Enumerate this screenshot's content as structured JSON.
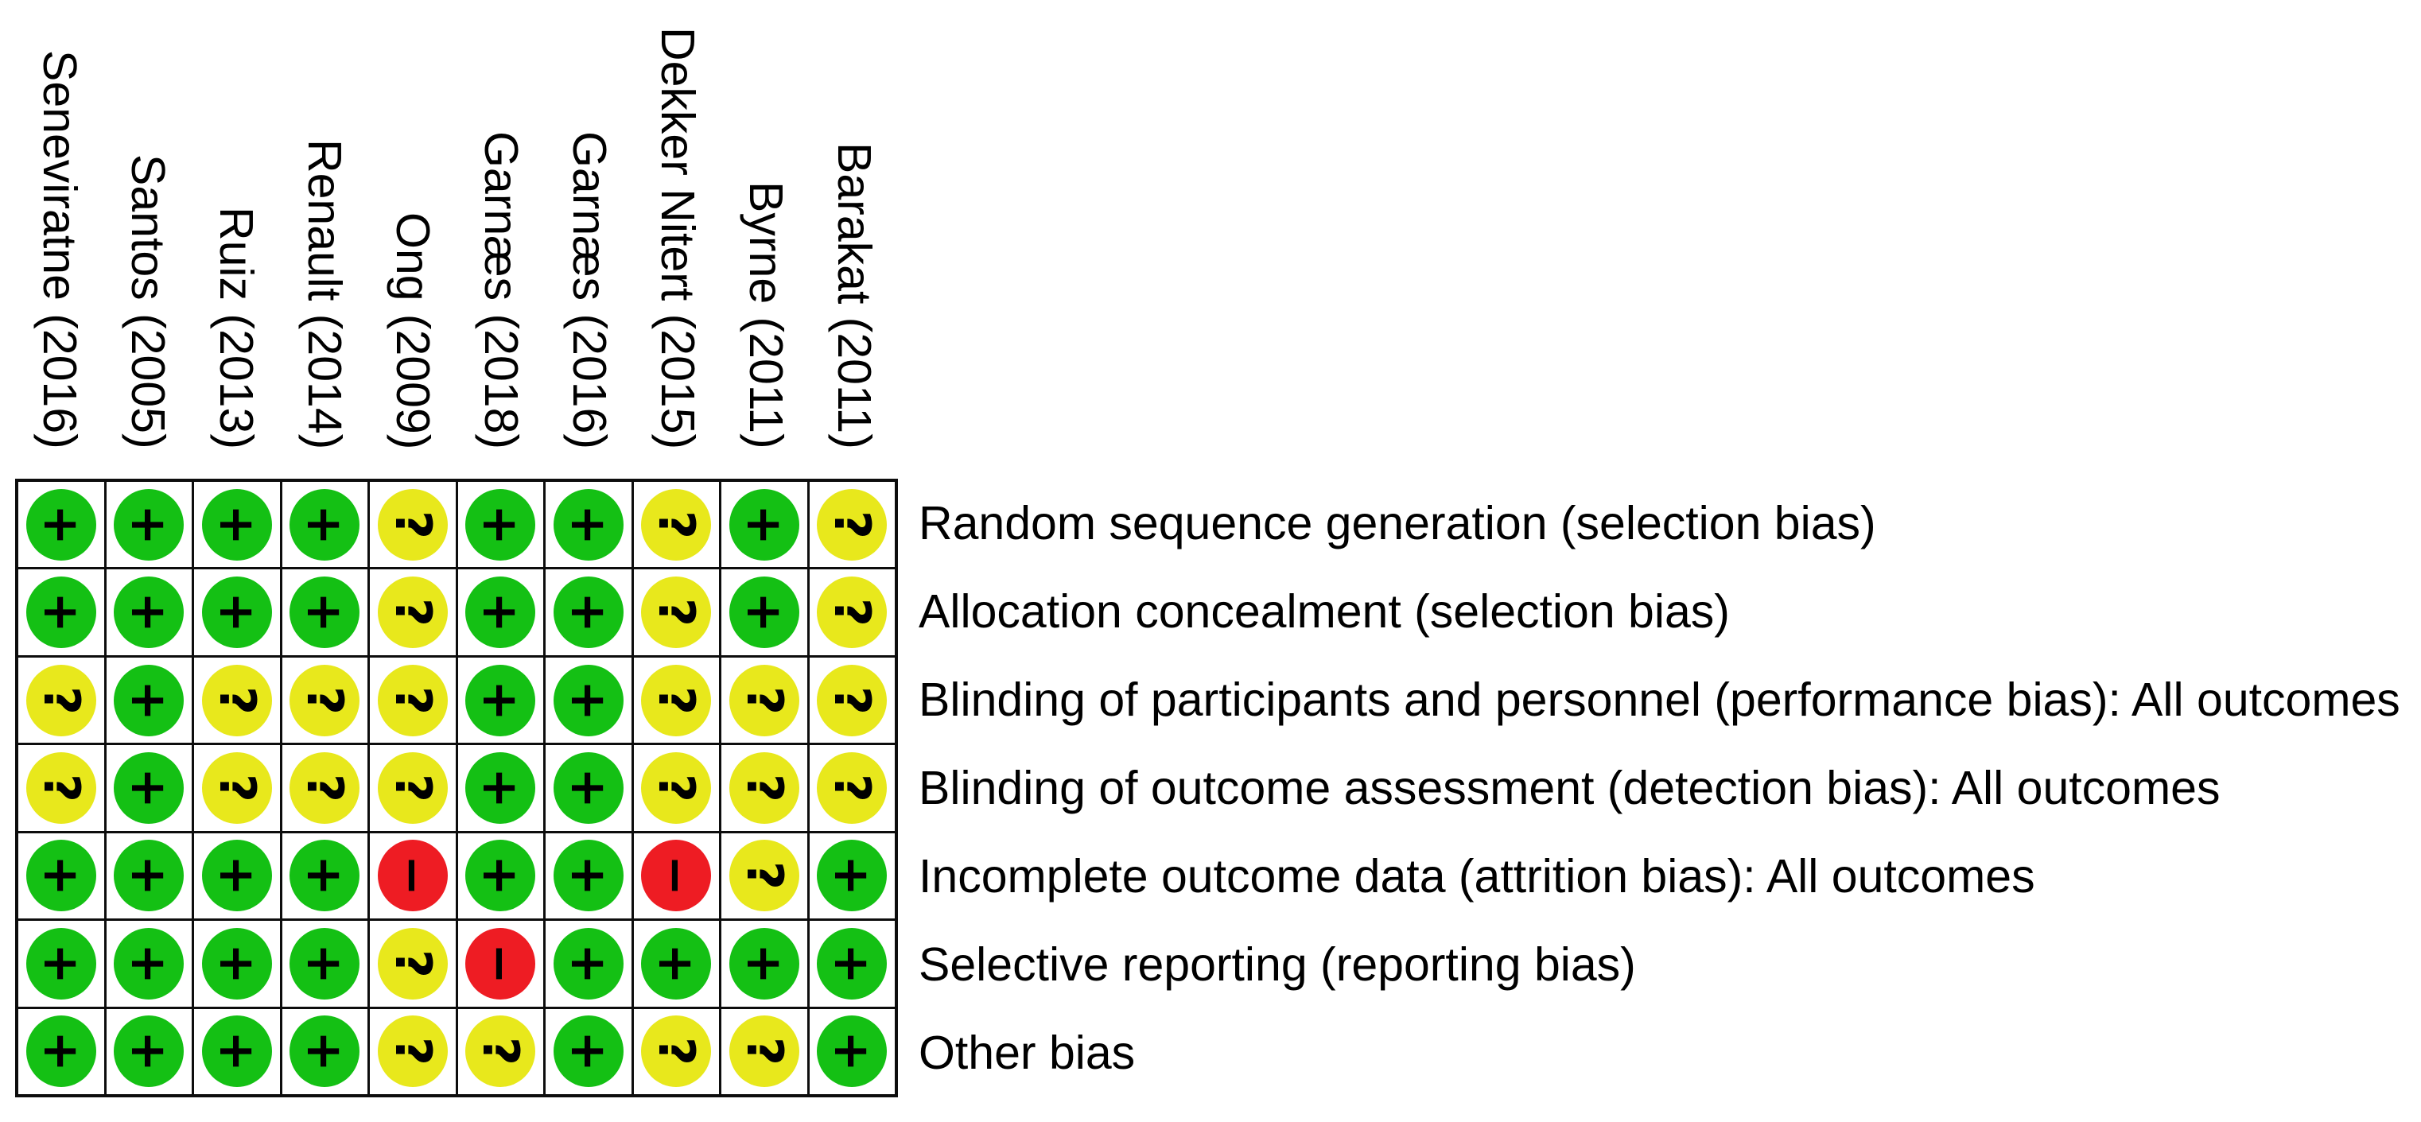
{
  "chart_data": {
    "type": "heatmap",
    "description_of_visual": "risk-of-bias summary matrix with colored judgement circles",
    "columns": [
      "Seneviratne (2016)",
      "Santos (2005)",
      "Ruiz (2013)",
      "Renault (2014)",
      "Ong (2009)",
      "Garnæs (2018)",
      "Garnæs (2016)",
      "Dekker Nitert (2015)",
      "Byrne (2011)",
      "Barakat (2011)"
    ],
    "rows": [
      "Random sequence generation (selection bias)",
      "Allocation concealment (selection bias)",
      "Blinding of participants and personnel (performance bias): All outcomes",
      "Blinding of outcome assessment (detection bias): All outcomes",
      "Incomplete outcome data (attrition bias): All outcomes",
      "Selective reporting (reporting bias)",
      "Other bias"
    ],
    "values": [
      [
        "+",
        "+",
        "+",
        "+",
        "?",
        "+",
        "+",
        "?",
        "+",
        "?"
      ],
      [
        "+",
        "+",
        "+",
        "+",
        "?",
        "+",
        "+",
        "?",
        "+",
        "?"
      ],
      [
        "?",
        "+",
        "?",
        "?",
        "?",
        "+",
        "+",
        "?",
        "?",
        "?"
      ],
      [
        "?",
        "+",
        "?",
        "?",
        "?",
        "+",
        "+",
        "?",
        "?",
        "?"
      ],
      [
        "+",
        "+",
        "+",
        "+",
        "-",
        "+",
        "+",
        "-",
        "?",
        "+"
      ],
      [
        "+",
        "+",
        "+",
        "+",
        "?",
        "-",
        "+",
        "+",
        "+",
        "+"
      ],
      [
        "+",
        "+",
        "+",
        "+",
        "?",
        "?",
        "+",
        "?",
        "?",
        "+"
      ]
    ],
    "symbol_display": {
      "+": "+",
      "?": "?",
      "-": "−"
    },
    "colors": {
      "+": "#14c014",
      "?": "#e8e81c",
      "-": "#ee1c23"
    },
    "judgement_names": {
      "+": "plus",
      "?": "question",
      "-": "minus"
    },
    "layout_hints": {
      "grid_on": true,
      "column_headers_rotated_90deg_clockwise": true,
      "symbols_rotated_90deg_clockwise": true,
      "legend_position": "none"
    }
  }
}
